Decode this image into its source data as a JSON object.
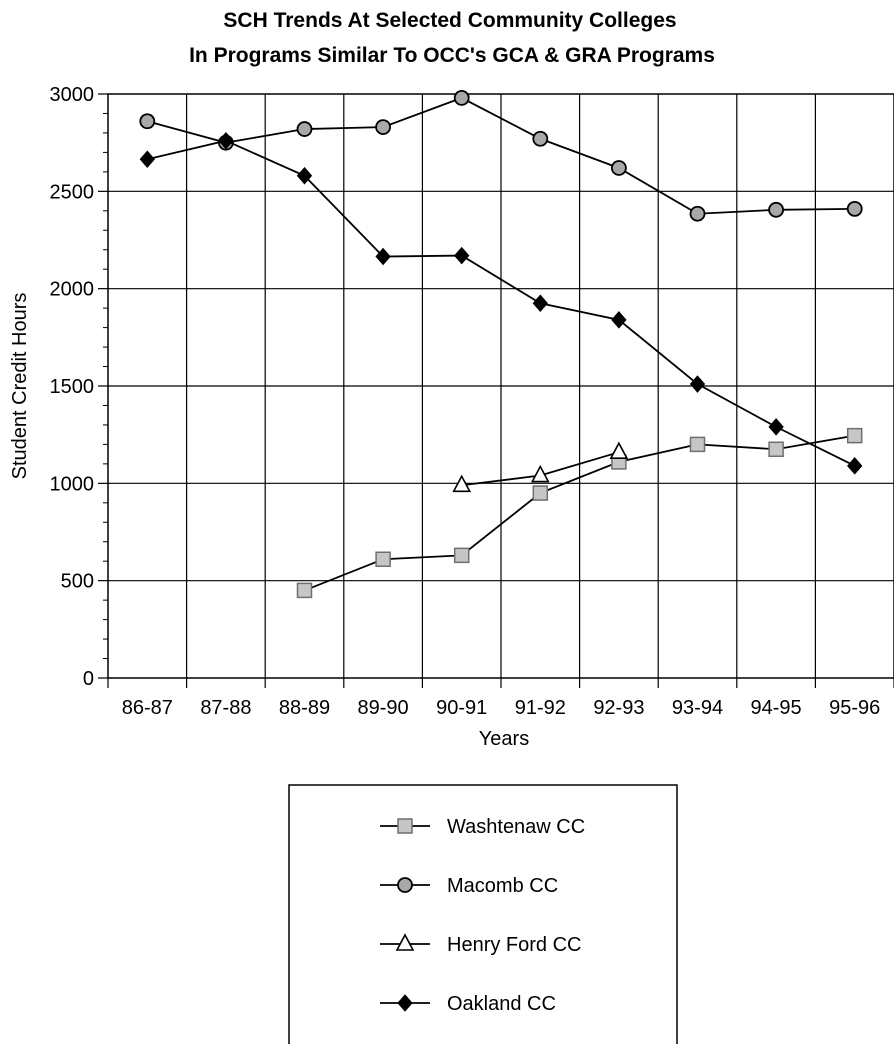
{
  "chart_data": {
    "type": "line",
    "title": [
      "SCH Trends At Selected Community Colleges",
      "In Programs Similar To OCC's GCA & GRA Programs"
    ],
    "xlabel": "Years",
    "ylabel": "Student Credit Hours",
    "categories": [
      "86-87",
      "87-88",
      "88-89",
      "89-90",
      "90-91",
      "91-92",
      "92-93",
      "93-94",
      "94-95",
      "95-96"
    ],
    "ylim": [
      0,
      3000
    ],
    "yticks": [
      0,
      500,
      1000,
      1500,
      2000,
      2500,
      3000
    ],
    "grid": true,
    "legend_position": "bottom",
    "series": [
      {
        "name": "Washtenaw CC",
        "marker": "square",
        "color": "#9a9a9a",
        "values": [
          null,
          null,
          450,
          610,
          630,
          950,
          1110,
          1200,
          1175,
          1245
        ]
      },
      {
        "name": "Macomb CC",
        "marker": "circle",
        "color": "#8a8a8a",
        "values": [
          2860,
          2750,
          2820,
          2830,
          2980,
          2770,
          2620,
          2385,
          2405,
          2410
        ]
      },
      {
        "name": "Henry Ford CC",
        "marker": "triangle",
        "color": "#ffffff",
        "values": [
          null,
          null,
          null,
          null,
          990,
          1040,
          1160,
          null,
          null,
          null
        ]
      },
      {
        "name": "Oakland CC",
        "marker": "diamond",
        "color": "#000000",
        "values": [
          2665,
          2760,
          2580,
          2165,
          2170,
          1925,
          1840,
          1510,
          1290,
          1090
        ]
      }
    ]
  }
}
